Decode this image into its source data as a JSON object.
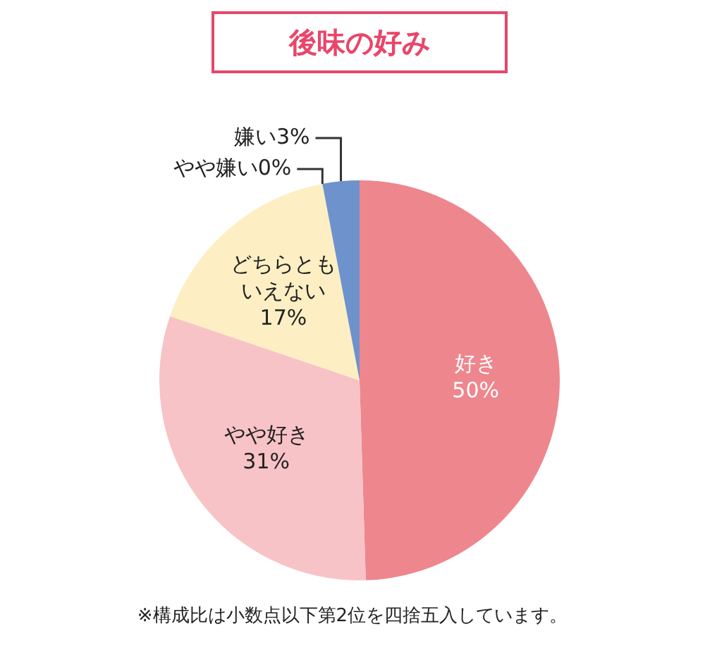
{
  "chart_data": {
    "type": "pie",
    "title": "後味の好み",
    "categories": [
      "好き",
      "やや好き",
      "どちらともいえない",
      "やや嫌い",
      "嫌い"
    ],
    "values": [
      50,
      31,
      17,
      0,
      3
    ],
    "colors": [
      "#ee868e",
      "#f8c3c6",
      "#fdefc3",
      "#f2c9a0",
      "#6e92cc"
    ],
    "value_labels": [
      "50%",
      "31%",
      "17%",
      "0%",
      "3%"
    ],
    "annotations": [
      "※構成比は小数点以下第2位を四捨五入しています。"
    ]
  }
}
